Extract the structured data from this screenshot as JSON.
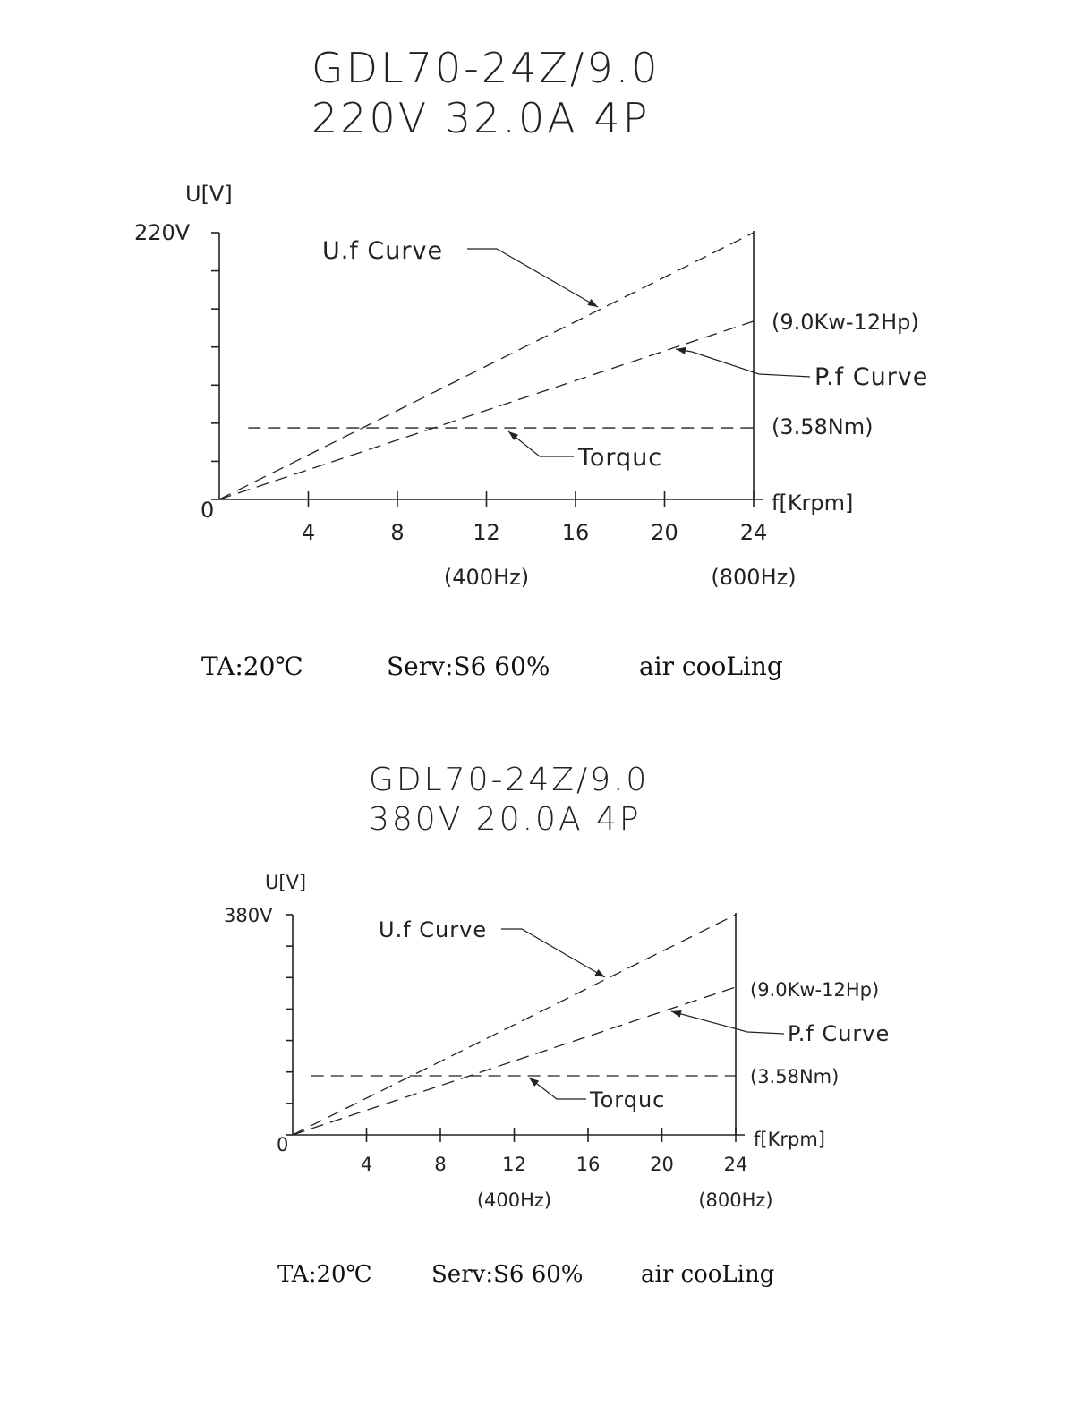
{
  "chart_data": [
    {
      "type": "line",
      "title": "GDL70-24Z/9.0",
      "subtitle": "220V 32.0A   4P",
      "ylabel": "U[V]",
      "ymax_label": "220V",
      "xlabel": "f[Krpm]",
      "origin_label": "0",
      "x_ticks": [
        4,
        8,
        12,
        16,
        20,
        24
      ],
      "x_ticks_labels": [
        "4",
        "8",
        "12",
        "16",
        "20",
        "24"
      ],
      "xlim": [
        0,
        24
      ],
      "ylim": [
        0,
        220
      ],
      "freq_labels": [
        {
          "x": 12,
          "text": "(400Hz)"
        },
        {
          "x": 24,
          "text": "(800Hz)"
        }
      ],
      "series": [
        {
          "name": "U.f Curve",
          "x": [
            0,
            24
          ],
          "y": [
            0,
            220
          ]
        },
        {
          "name": "P.f Curve",
          "x": [
            0,
            24
          ],
          "y": [
            0,
            147
          ],
          "end_label": "(9.0Kw-12Hp)"
        },
        {
          "name": "Torquc",
          "x": [
            1.3,
            24
          ],
          "y": [
            59,
            59
          ],
          "end_label": "(3.58Nm)"
        }
      ],
      "footer": [
        "TA:20℃",
        "Serv:S6 60%",
        "air cooLing"
      ]
    },
    {
      "type": "line",
      "title": "GDL70-24Z/9.0",
      "subtitle": "380V 20.0A   4P",
      "ylabel": "U[V]",
      "ymax_label": "380V",
      "xlabel": "f[Krpm]",
      "origin_label": "0",
      "x_ticks": [
        4,
        8,
        12,
        16,
        20,
        24
      ],
      "x_ticks_labels": [
        "4",
        "8",
        "12",
        "16",
        "20",
        "24"
      ],
      "xlim": [
        0,
        24
      ],
      "ylim": [
        0,
        380
      ],
      "freq_labels": [
        {
          "x": 12,
          "text": "(400Hz)"
        },
        {
          "x": 24,
          "text": "(800Hz)"
        }
      ],
      "series": [
        {
          "name": "U.f Curve",
          "x": [
            0,
            24
          ],
          "y": [
            0,
            380
          ]
        },
        {
          "name": "P.f Curve",
          "x": [
            0,
            24
          ],
          "y": [
            0,
            255
          ],
          "end_label": "(9.0Kw-12Hp)"
        },
        {
          "name": "Torquc",
          "x": [
            1.0,
            24
          ],
          "y": [
            102,
            102
          ],
          "end_label": "(3.58Nm)"
        }
      ],
      "footer": [
        "TA:20℃",
        "Serv:S6 60%",
        "air cooLing"
      ]
    }
  ]
}
